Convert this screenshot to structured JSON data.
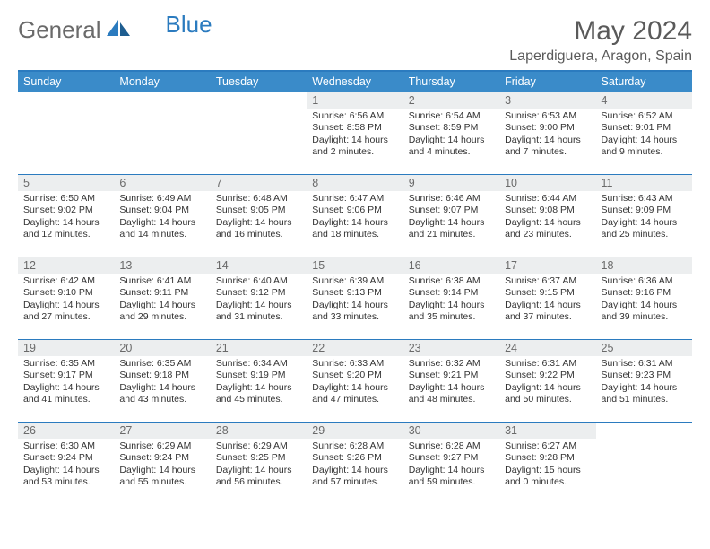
{
  "logo": {
    "word1": "General",
    "word2": "Blue"
  },
  "title": "May 2024",
  "location": "Laperdiguera, Aragon, Spain",
  "weekdays": [
    "Sunday",
    "Monday",
    "Tuesday",
    "Wednesday",
    "Thursday",
    "Friday",
    "Saturday"
  ],
  "colors": {
    "header_bg": "#3a8bc9",
    "rule": "#2b7bbf",
    "daynum_bg": "#eceeef",
    "text": "#333333",
    "muted": "#6a6a6a"
  },
  "typography": {
    "base_font": "Arial",
    "title_size_pt": 30,
    "body_size_pt": 10.5
  },
  "grid": {
    "cols": 7,
    "rows": 5,
    "first_day_col": 3,
    "days_in_month": 31
  },
  "days": [
    {
      "n": 1,
      "sunrise": "6:56 AM",
      "sunset": "8:58 PM",
      "daylight": "14 hours and 2 minutes."
    },
    {
      "n": 2,
      "sunrise": "6:54 AM",
      "sunset": "8:59 PM",
      "daylight": "14 hours and 4 minutes."
    },
    {
      "n": 3,
      "sunrise": "6:53 AM",
      "sunset": "9:00 PM",
      "daylight": "14 hours and 7 minutes."
    },
    {
      "n": 4,
      "sunrise": "6:52 AM",
      "sunset": "9:01 PM",
      "daylight": "14 hours and 9 minutes."
    },
    {
      "n": 5,
      "sunrise": "6:50 AM",
      "sunset": "9:02 PM",
      "daylight": "14 hours and 12 minutes."
    },
    {
      "n": 6,
      "sunrise": "6:49 AM",
      "sunset": "9:04 PM",
      "daylight": "14 hours and 14 minutes."
    },
    {
      "n": 7,
      "sunrise": "6:48 AM",
      "sunset": "9:05 PM",
      "daylight": "14 hours and 16 minutes."
    },
    {
      "n": 8,
      "sunrise": "6:47 AM",
      "sunset": "9:06 PM",
      "daylight": "14 hours and 18 minutes."
    },
    {
      "n": 9,
      "sunrise": "6:46 AM",
      "sunset": "9:07 PM",
      "daylight": "14 hours and 21 minutes."
    },
    {
      "n": 10,
      "sunrise": "6:44 AM",
      "sunset": "9:08 PM",
      "daylight": "14 hours and 23 minutes."
    },
    {
      "n": 11,
      "sunrise": "6:43 AM",
      "sunset": "9:09 PM",
      "daylight": "14 hours and 25 minutes."
    },
    {
      "n": 12,
      "sunrise": "6:42 AM",
      "sunset": "9:10 PM",
      "daylight": "14 hours and 27 minutes."
    },
    {
      "n": 13,
      "sunrise": "6:41 AM",
      "sunset": "9:11 PM",
      "daylight": "14 hours and 29 minutes."
    },
    {
      "n": 14,
      "sunrise": "6:40 AM",
      "sunset": "9:12 PM",
      "daylight": "14 hours and 31 minutes."
    },
    {
      "n": 15,
      "sunrise": "6:39 AM",
      "sunset": "9:13 PM",
      "daylight": "14 hours and 33 minutes."
    },
    {
      "n": 16,
      "sunrise": "6:38 AM",
      "sunset": "9:14 PM",
      "daylight": "14 hours and 35 minutes."
    },
    {
      "n": 17,
      "sunrise": "6:37 AM",
      "sunset": "9:15 PM",
      "daylight": "14 hours and 37 minutes."
    },
    {
      "n": 18,
      "sunrise": "6:36 AM",
      "sunset": "9:16 PM",
      "daylight": "14 hours and 39 minutes."
    },
    {
      "n": 19,
      "sunrise": "6:35 AM",
      "sunset": "9:17 PM",
      "daylight": "14 hours and 41 minutes."
    },
    {
      "n": 20,
      "sunrise": "6:35 AM",
      "sunset": "9:18 PM",
      "daylight": "14 hours and 43 minutes."
    },
    {
      "n": 21,
      "sunrise": "6:34 AM",
      "sunset": "9:19 PM",
      "daylight": "14 hours and 45 minutes."
    },
    {
      "n": 22,
      "sunrise": "6:33 AM",
      "sunset": "9:20 PM",
      "daylight": "14 hours and 47 minutes."
    },
    {
      "n": 23,
      "sunrise": "6:32 AM",
      "sunset": "9:21 PM",
      "daylight": "14 hours and 48 minutes."
    },
    {
      "n": 24,
      "sunrise": "6:31 AM",
      "sunset": "9:22 PM",
      "daylight": "14 hours and 50 minutes."
    },
    {
      "n": 25,
      "sunrise": "6:31 AM",
      "sunset": "9:23 PM",
      "daylight": "14 hours and 51 minutes."
    },
    {
      "n": 26,
      "sunrise": "6:30 AM",
      "sunset": "9:24 PM",
      "daylight": "14 hours and 53 minutes."
    },
    {
      "n": 27,
      "sunrise": "6:29 AM",
      "sunset": "9:24 PM",
      "daylight": "14 hours and 55 minutes."
    },
    {
      "n": 28,
      "sunrise": "6:29 AM",
      "sunset": "9:25 PM",
      "daylight": "14 hours and 56 minutes."
    },
    {
      "n": 29,
      "sunrise": "6:28 AM",
      "sunset": "9:26 PM",
      "daylight": "14 hours and 57 minutes."
    },
    {
      "n": 30,
      "sunrise": "6:28 AM",
      "sunset": "9:27 PM",
      "daylight": "14 hours and 59 minutes."
    },
    {
      "n": 31,
      "sunrise": "6:27 AM",
      "sunset": "9:28 PM",
      "daylight": "15 hours and 0 minutes."
    }
  ],
  "labels": {
    "sunrise": "Sunrise:",
    "sunset": "Sunset:",
    "daylight": "Daylight:"
  }
}
